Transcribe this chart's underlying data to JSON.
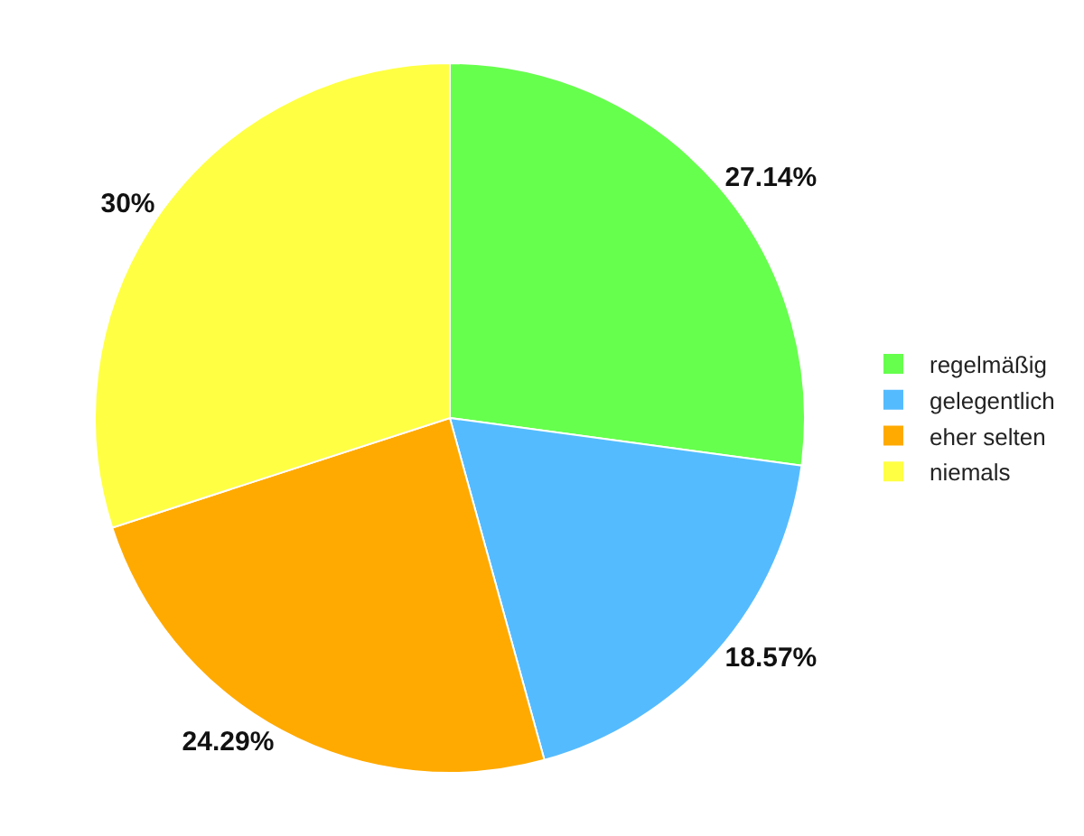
{
  "chart_data": {
    "type": "pie",
    "categories": [
      "regelmäßig",
      "gelegentlich",
      "eher selten",
      "niemals"
    ],
    "values": [
      27.14,
      18.57,
      24.29,
      30
    ],
    "colors": [
      "#66ff4d",
      "#55bbff",
      "#ffaa00",
      "#ffff44"
    ],
    "value_labels": [
      "27.14%",
      "18.57%",
      "24.29%",
      "30%"
    ],
    "legend": "right"
  }
}
